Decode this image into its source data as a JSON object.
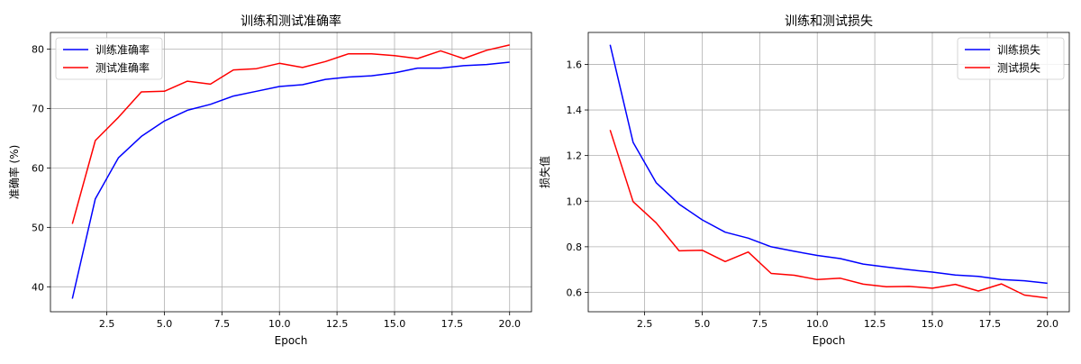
{
  "chart_data": [
    {
      "type": "line",
      "title": "训练和测试准确率",
      "xlabel": "Epoch",
      "ylabel": "准确率 (%)",
      "xlim": [
        0.05,
        20.95
      ],
      "ylim": [
        35.8,
        82.8
      ],
      "xticks": [
        2.5,
        5.0,
        7.5,
        10.0,
        12.5,
        15.0,
        17.5,
        20.0
      ],
      "xtick_labels": [
        "2.5",
        "5.0",
        "7.5",
        "10.0",
        "12.5",
        "15.0",
        "17.5",
        "20.0"
      ],
      "yticks": [
        40,
        50,
        60,
        70,
        80
      ],
      "ytick_labels": [
        "40",
        "50",
        "60",
        "70",
        "80"
      ],
      "grid": true,
      "legend_position": "top-left",
      "x": [
        1,
        2,
        3,
        4,
        5,
        6,
        7,
        8,
        9,
        10,
        11,
        12,
        13,
        14,
        15,
        16,
        17,
        18,
        19,
        20
      ],
      "series": [
        {
          "name": "训练准确率",
          "color": "#0000ff",
          "values": [
            38.0,
            54.8,
            61.7,
            65.3,
            67.9,
            69.7,
            70.7,
            72.1,
            72.9,
            73.7,
            74.0,
            74.9,
            75.3,
            75.5,
            76.0,
            76.8,
            76.8,
            77.2,
            77.4,
            77.8
          ]
        },
        {
          "name": "测试准确率",
          "color": "#ff0000",
          "values": [
            50.6,
            64.6,
            68.5,
            72.8,
            72.9,
            74.6,
            74.1,
            76.5,
            76.7,
            77.6,
            76.9,
            77.9,
            79.2,
            79.2,
            78.9,
            78.4,
            79.7,
            78.4,
            79.8,
            80.7
          ]
        }
      ]
    },
    {
      "type": "line",
      "title": "训练和测试损失",
      "xlabel": "Epoch",
      "ylabel": "损失值",
      "xlim": [
        0.05,
        20.95
      ],
      "ylim": [
        0.515,
        1.74
      ],
      "xticks": [
        2.5,
        5.0,
        7.5,
        10.0,
        12.5,
        15.0,
        17.5,
        20.0
      ],
      "xtick_labels": [
        "2.5",
        "5.0",
        "7.5",
        "10.0",
        "12.5",
        "15.0",
        "17.5",
        "20.0"
      ],
      "yticks": [
        0.6,
        0.8,
        1.0,
        1.2,
        1.4,
        1.6
      ],
      "ytick_labels": [
        "0.6",
        "0.8",
        "1.0",
        "1.2",
        "1.4",
        "1.6"
      ],
      "grid": true,
      "legend_position": "top-right",
      "x": [
        1,
        2,
        3,
        4,
        5,
        6,
        7,
        8,
        9,
        10,
        11,
        12,
        13,
        14,
        15,
        16,
        17,
        18,
        19,
        20
      ],
      "series": [
        {
          "name": "训练损失",
          "color": "#0000ff",
          "values": [
            1.686,
            1.258,
            1.081,
            0.987,
            0.918,
            0.864,
            0.838,
            0.8,
            0.78,
            0.762,
            0.748,
            0.724,
            0.711,
            0.699,
            0.689,
            0.676,
            0.67,
            0.656,
            0.651,
            0.64
          ]
        },
        {
          "name": "测试损失",
          "color": "#ff0000",
          "values": [
            1.312,
            0.998,
            0.905,
            0.782,
            0.785,
            0.735,
            0.777,
            0.683,
            0.675,
            0.656,
            0.662,
            0.636,
            0.625,
            0.626,
            0.618,
            0.635,
            0.606,
            0.637,
            0.588,
            0.575
          ]
        }
      ]
    }
  ]
}
